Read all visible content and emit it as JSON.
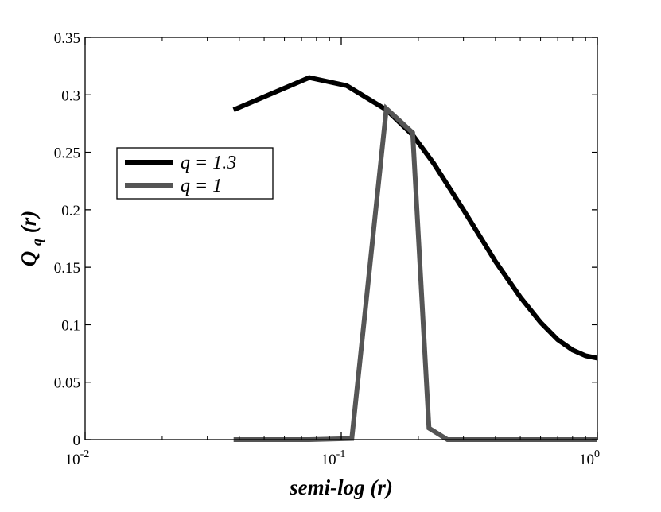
{
  "chart_data": {
    "type": "line",
    "xscale": "log",
    "xlim": [
      0.01,
      1
    ],
    "ylim": [
      0,
      0.35
    ],
    "grid": false,
    "legend_position": "upper-left",
    "xlabel": "semi-log (r)",
    "ylabel": {
      "main": "Q",
      "sub": "q",
      "suffix": "(r)"
    },
    "x_ticks": [
      {
        "value": 0.01,
        "base": "10",
        "exp": "-2"
      },
      {
        "value": 0.1,
        "base": "10",
        "exp": "-1"
      },
      {
        "value": 1,
        "base": "10",
        "exp": "0"
      }
    ],
    "y_ticks": [
      {
        "value": 0,
        "label": "0"
      },
      {
        "value": 0.05,
        "label": "0.05"
      },
      {
        "value": 0.1,
        "label": "0.1"
      },
      {
        "value": 0.15,
        "label": "0.15"
      },
      {
        "value": 0.2,
        "label": "0.2"
      },
      {
        "value": 0.25,
        "label": "0.25"
      },
      {
        "value": 0.3,
        "label": "0.3"
      },
      {
        "value": 0.35,
        "label": "0.35"
      }
    ],
    "series": [
      {
        "name": "q = 1.3",
        "color": "#000000",
        "x": [
          0.038,
          0.075,
          0.105,
          0.15,
          0.19,
          0.23,
          0.3,
          0.4,
          0.5,
          0.6,
          0.7,
          0.8,
          0.9,
          1.0
        ],
        "y": [
          0.287,
          0.315,
          0.308,
          0.287,
          0.265,
          0.24,
          0.2,
          0.155,
          0.124,
          0.102,
          0.087,
          0.078,
          0.073,
          0.071
        ]
      },
      {
        "name": "q = 1",
        "color": "#555555",
        "x": [
          0.038,
          0.075,
          0.11,
          0.15,
          0.19,
          0.22,
          0.26,
          0.4,
          0.6,
          1.0
        ],
        "y": [
          0.0,
          0.0,
          0.001,
          0.288,
          0.267,
          0.01,
          0.0,
          0.0,
          0.0,
          0.0
        ]
      }
    ]
  }
}
